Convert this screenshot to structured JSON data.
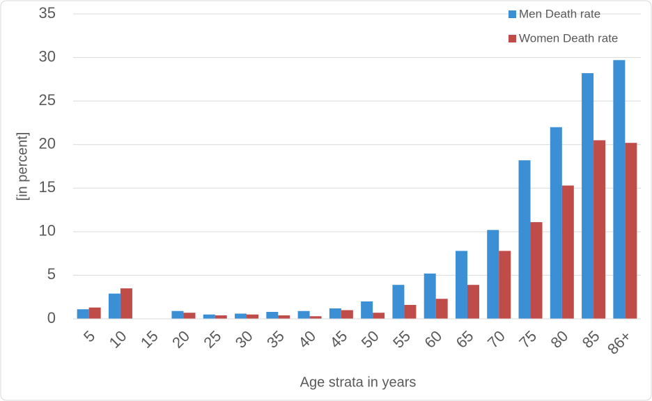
{
  "chart_data": {
    "type": "bar",
    "x_label": "Age strata in years",
    "y_label": "[in percent]",
    "categories": [
      "5",
      "10",
      "15",
      "20",
      "25",
      "30",
      "35",
      "40",
      "45",
      "50",
      "55",
      "60",
      "65",
      "70",
      "75",
      "80",
      "85",
      "86+"
    ],
    "series": [
      {
        "name": "Men Death rate",
        "color": "#3b8fd4",
        "values": [
          1.1,
          2.9,
          0,
          0.9,
          0.5,
          0.6,
          0.8,
          0.9,
          1.2,
          2.0,
          3.9,
          5.2,
          7.8,
          10.2,
          18.2,
          22.0,
          28.2,
          29.7
        ]
      },
      {
        "name": "Women Death rate",
        "color": "#c04c49",
        "values": [
          1.3,
          3.5,
          0,
          0.7,
          0.4,
          0.5,
          0.4,
          0.3,
          1.0,
          0.7,
          1.6,
          2.3,
          3.9,
          7.8,
          11.1,
          15.3,
          20.5,
          20.2
        ]
      }
    ],
    "ylim": [
      0,
      35
    ],
    "yticks": [
      0,
      5,
      10,
      15,
      20,
      25,
      30,
      35
    ],
    "grid": true,
    "legend": "top-right"
  }
}
